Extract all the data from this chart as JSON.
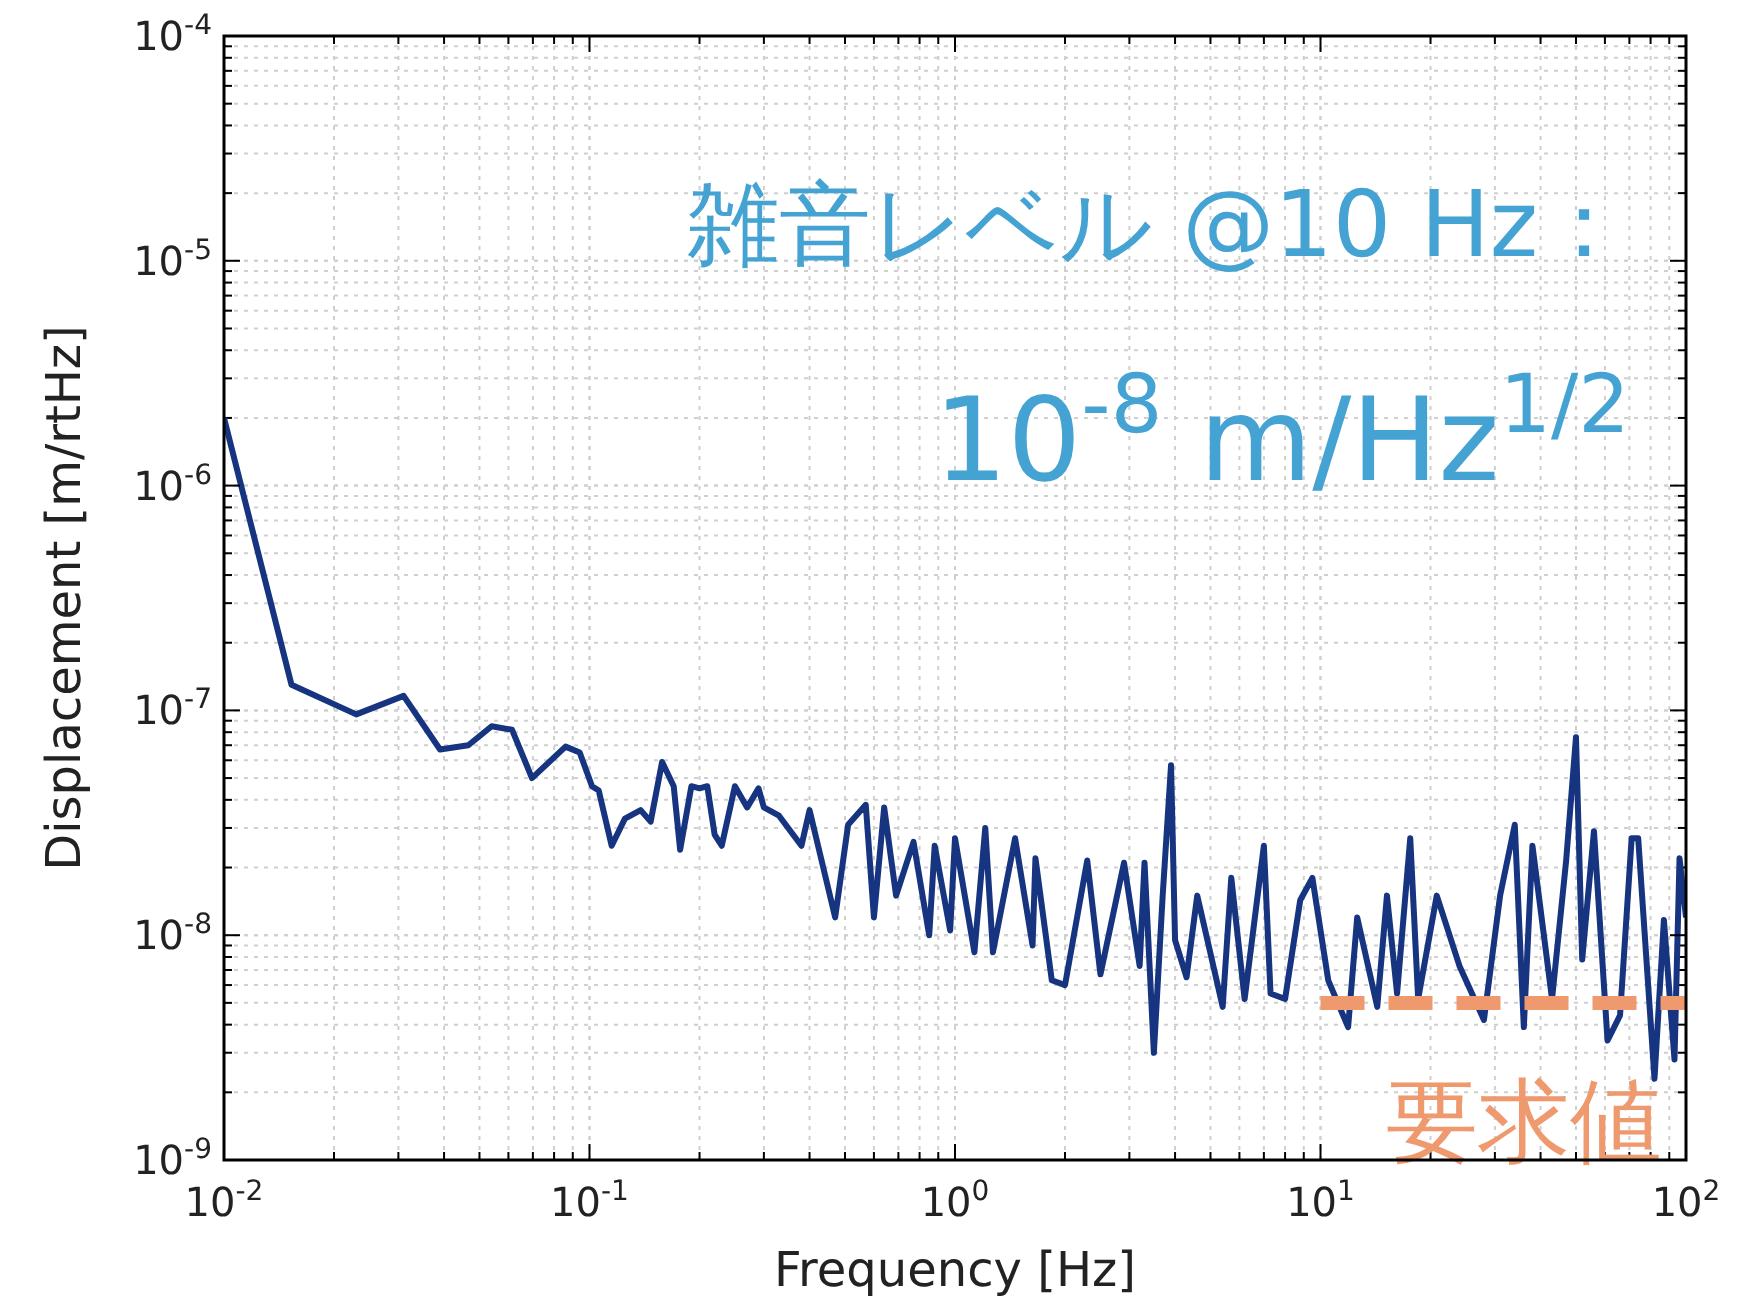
{
  "chart_data": {
    "type": "line",
    "xlabel": "Frequency [Hz]",
    "ylabel": "Displacement [m/rtHz]",
    "log": "xy",
    "grid": true,
    "xlim": [
      0.01,
      100
    ],
    "ylim": [
      1e-09,
      0.0001
    ],
    "xticks": [
      {
        "value": 0.01,
        "label": "10$^{-2}$"
      },
      {
        "value": 0.1,
        "label": "10$^{-1}$"
      },
      {
        "value": 1,
        "label": "10$^{0}$"
      },
      {
        "value": 10,
        "label": "10$^{1}$"
      },
      {
        "value": 100,
        "label": "10$^{2}$"
      }
    ],
    "yticks": [
      {
        "value": 1e-09,
        "label": "10$^{-9}$"
      },
      {
        "value": 1e-08,
        "label": "10$^{-8}$"
      },
      {
        "value": 1e-07,
        "label": "10$^{-7}$"
      },
      {
        "value": 1e-06,
        "label": "10$^{-6}$"
      },
      {
        "value": 1e-05,
        "label": "10$^{-5}$"
      },
      {
        "value": 0.0001,
        "label": "10$^{-4}$"
      }
    ],
    "annotations": [
      "雑音レベル @10 Hz：",
      "10$^{-8}$ m/Hz$^{1/2}$"
    ],
    "series": [
      {
        "color": "#16347f",
        "line_style": "solid",
        "x": [
          0.01,
          0.0153,
          0.023,
          0.031,
          0.039,
          0.0466,
          0.054,
          0.0614,
          0.0696,
          0.086,
          0.094,
          0.1016,
          0.106,
          0.115,
          0.125,
          0.138,
          0.147,
          0.158,
          0.17,
          0.177,
          0.19,
          0.2,
          0.21,
          0.22,
          0.23,
          0.25,
          0.27,
          0.29,
          0.3,
          0.33,
          0.38,
          0.4,
          0.47,
          0.51,
          0.57,
          0.6,
          0.64,
          0.69,
          0.77,
          0.85,
          0.88,
          0.97,
          1.0,
          1.13,
          1.21,
          1.27,
          1.46,
          1.63,
          1.66,
          1.84,
          2.0,
          2.3,
          2.5,
          2.9,
          3.2,
          3.3,
          3.5,
          3.7,
          3.9,
          4.0,
          4.3,
          4.6,
          5.4,
          5.7,
          6.2,
          7.0,
          7.3,
          8.0,
          8.8,
          9.5,
          10.5,
          11.9,
          12.6,
          14.3,
          15.2,
          16.2,
          17.6,
          18.5,
          20.8,
          24,
          28,
          31,
          34,
          36,
          38,
          43,
          47,
          50,
          52,
          56,
          61,
          66,
          71,
          74,
          82,
          87,
          93,
          96,
          100
        ],
        "values": [
          2e-06,
          1.3e-07,
          9.6e-08,
          1.16e-07,
          6.7e-08,
          7e-08,
          8.5e-08,
          8.2e-08,
          5e-08,
          6.9e-08,
          6.5e-08,
          4.6e-08,
          4.4e-08,
          2.5e-08,
          3.3e-08,
          3.6e-08,
          3.2e-08,
          5.9e-08,
          4.6e-08,
          2.4e-08,
          4.6e-08,
          4.5e-08,
          4.6e-08,
          2.8e-08,
          2.5e-08,
          4.6e-08,
          3.7e-08,
          4.5e-08,
          3.7e-08,
          3.4e-08,
          2.5e-08,
          3.6e-08,
          1.2e-08,
          3.1e-08,
          3.8e-08,
          1.2e-08,
          3.7e-08,
          1.5e-08,
          2.6e-08,
          1e-08,
          2.5e-08,
          1.05e-08,
          2.7e-08,
          8.4e-09,
          3e-08,
          8.4e-09,
          2.7e-08,
          9e-09,
          2.2e-08,
          6.3e-09,
          6e-09,
          2.15e-08,
          6.7e-09,
          2.1e-08,
          7.3e-09,
          2.1e-08,
          3e-09,
          1.5e-08,
          5.7e-08,
          9.5e-09,
          6.5e-09,
          1.5e-08,
          4.8e-09,
          1.8e-08,
          5.2e-09,
          2.5e-08,
          5.5e-09,
          5.2e-09,
          1.43e-08,
          1.8e-08,
          6.3e-09,
          3.9e-09,
          1.2e-08,
          4.8e-09,
          1.5e-08,
          5.5e-09,
          2.7e-08,
          5.2e-09,
          1.5e-08,
          7.3e-09,
          4.2e-09,
          1.5e-08,
          3.1e-08,
          3.9e-09,
          2.5e-08,
          5.2e-09,
          2.15e-08,
          7.6e-08,
          7.8e-09,
          2.9e-08,
          3.4e-09,
          4.4e-09,
          2.7e-08,
          2.7e-08,
          2.3e-09,
          1.17e-08,
          2.8e-09,
          2.2e-08,
          1.2e-08
        ]
      },
      {
        "name": "要求値",
        "color": "#ee9a6e",
        "line_style": "dashed",
        "x": [
          10,
          100
        ],
        "values": [
          5e-09,
          5e-09
        ]
      }
    ]
  }
}
